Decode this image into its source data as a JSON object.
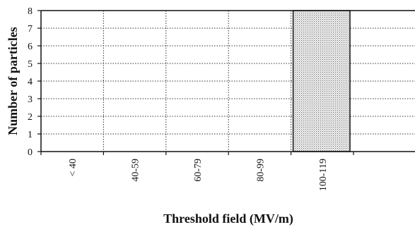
{
  "chart_data": {
    "type": "bar",
    "categories": [
      "< 40",
      "40-59",
      "60-79",
      "80-99",
      "100-119"
    ],
    "values": [
      0,
      0,
      0,
      0,
      8
    ],
    "xlabel": "Threshold field (MV/m)",
    "ylabel": "Number of particles",
    "ylim": [
      0,
      8
    ],
    "y_ticks": [
      "0",
      "1",
      "2",
      "3",
      "4",
      "5",
      "6",
      "7",
      "8"
    ],
    "grid": true,
    "grid_style": "dotted",
    "legend": "none",
    "bar_fill": "stippled light gray"
  }
}
